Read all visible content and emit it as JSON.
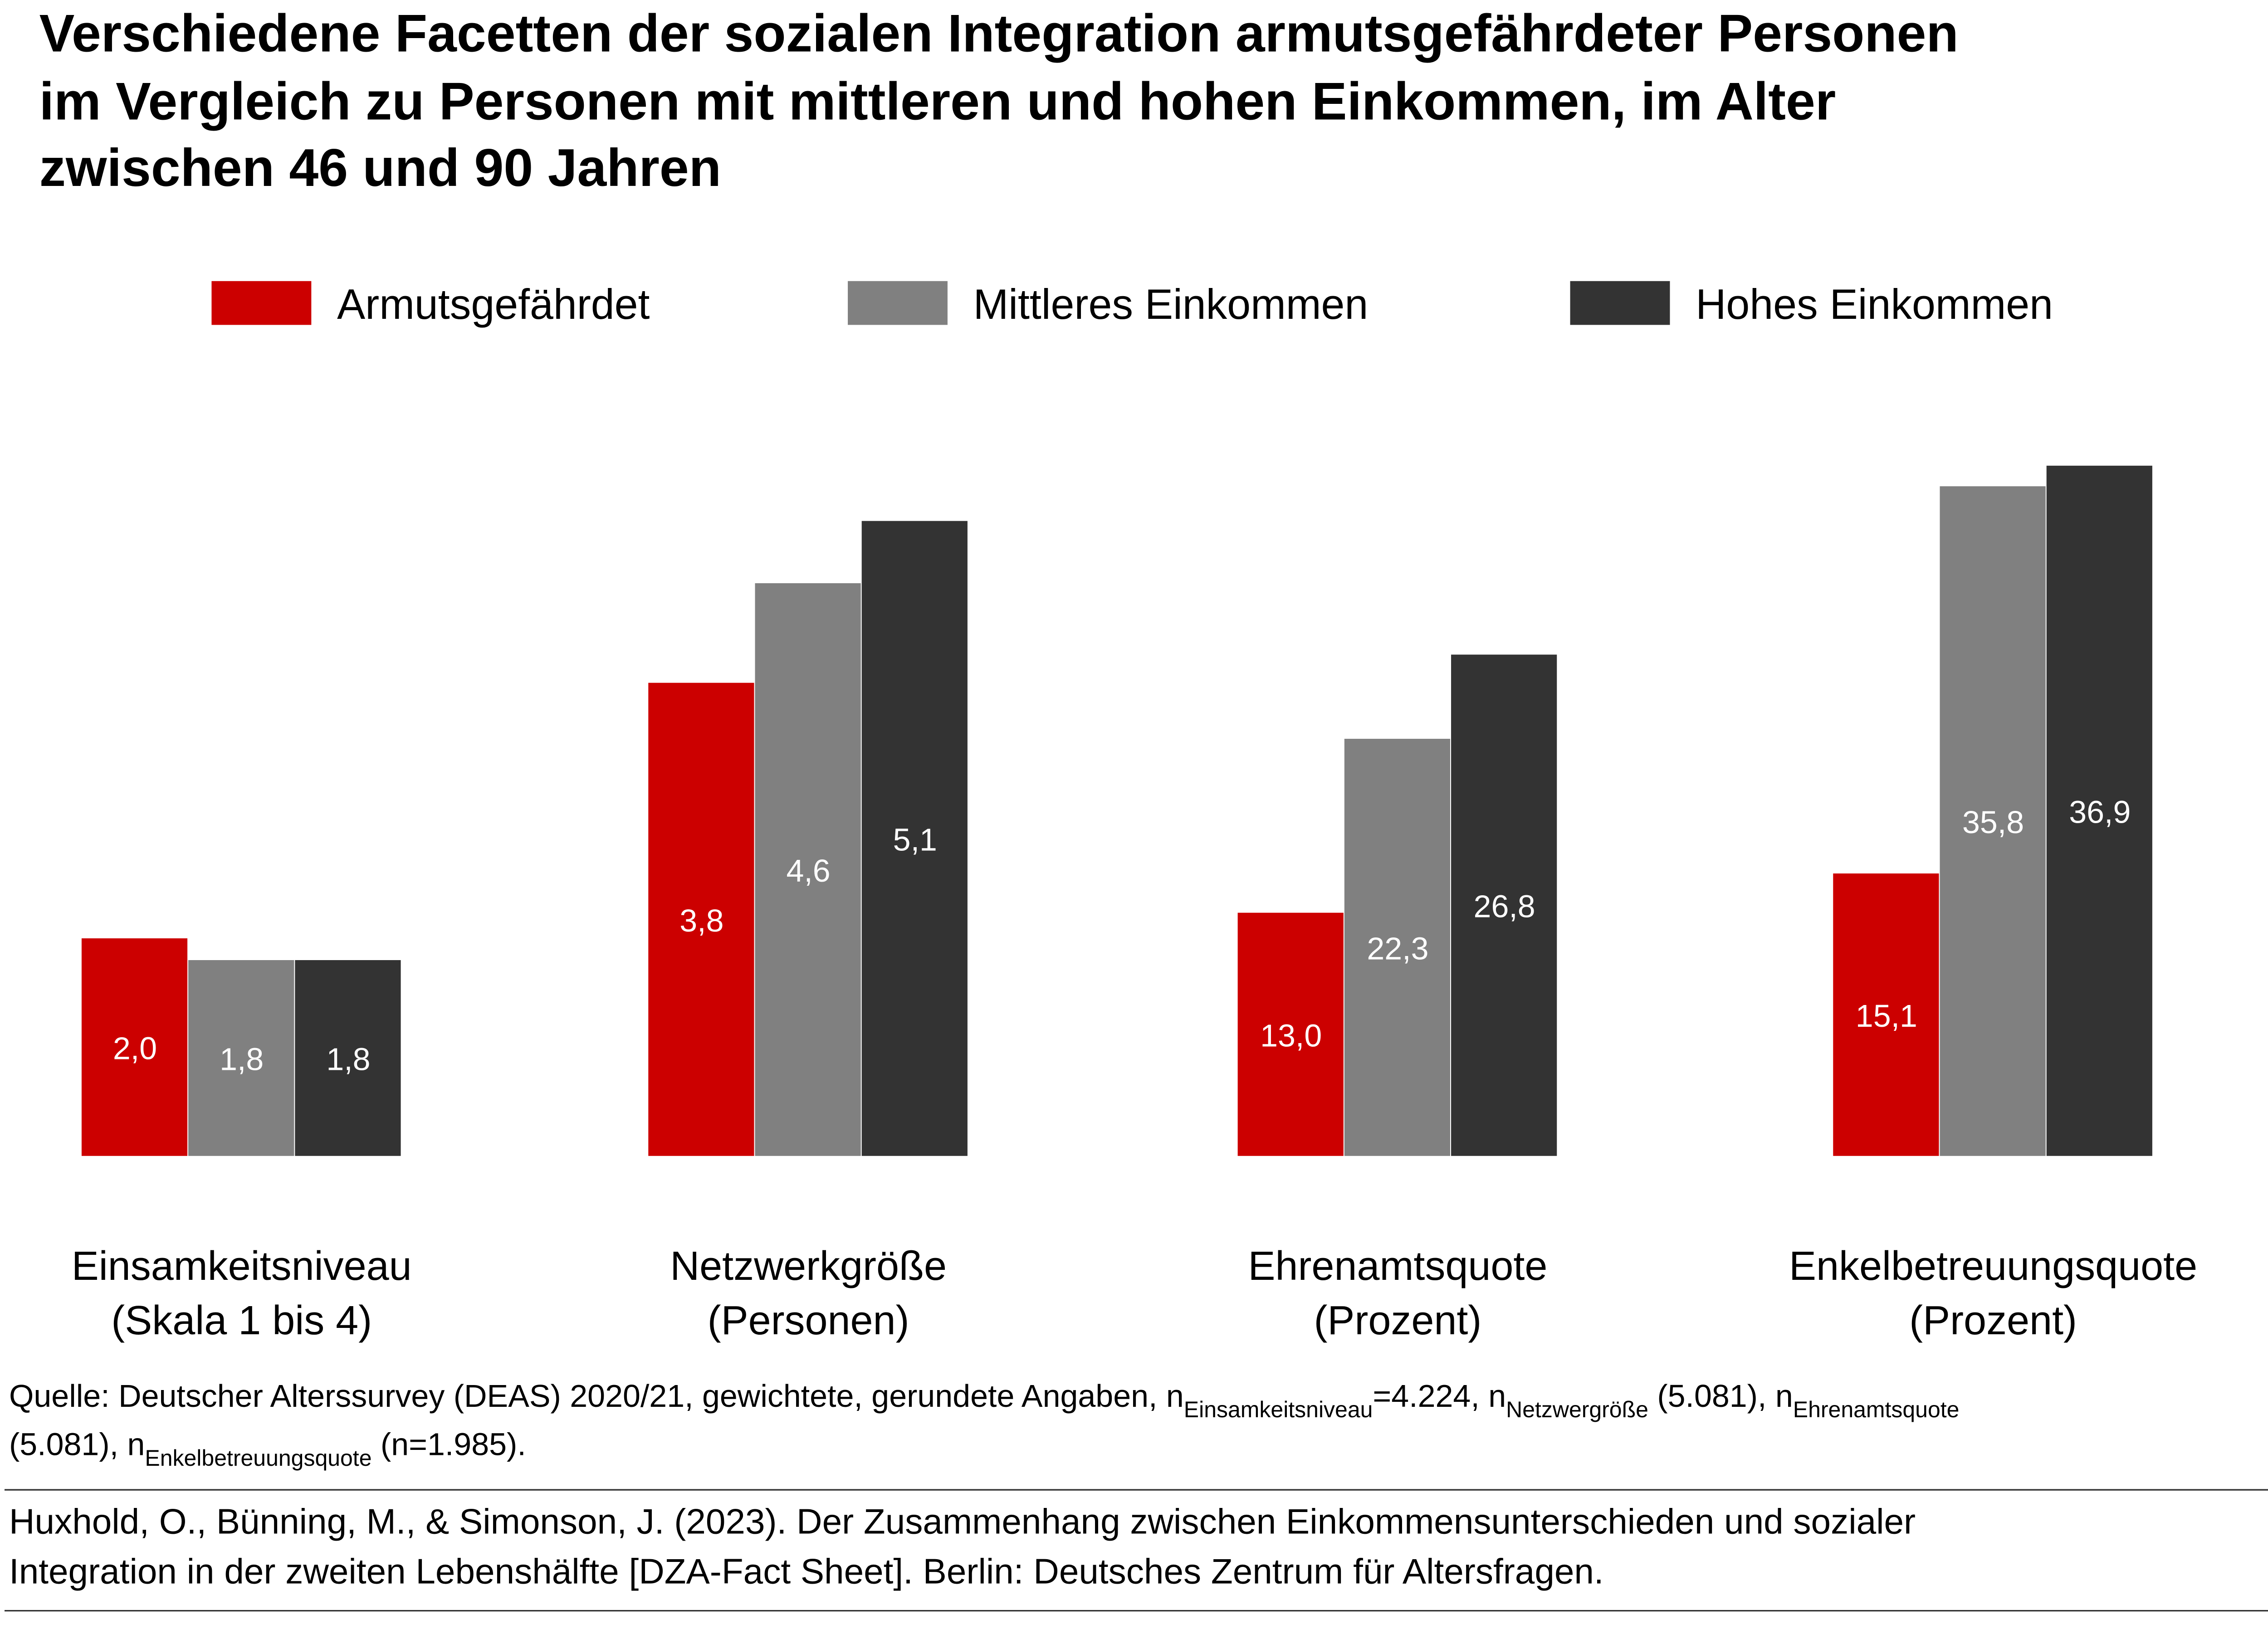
{
  "title_lines": [
    "Verschiedene Facetten der sozialen Integration armutsgefährdeter Personen",
    "im Vergleich zu Personen mit mittleren und hohen Einkommen, im Alter",
    "zwischen 46 und 90 Jahren"
  ],
  "chart_data": {
    "type": "bar",
    "title": "Verschiedene Facetten der sozialen Integration armutsgefährdeter Personen im Vergleich zu Personen mit mittleren und hohen Einkommen, im Alter zwischen 46 und 90 Jahren",
    "categories": [
      [
        "Einsamkeitsniveau",
        "(Skala 1 bis 4)"
      ],
      [
        "Netzwerkgröße",
        "(Personen)"
      ],
      [
        "Ehrenamtsquote",
        "(Prozent)"
      ],
      [
        "Enkelbetreuungsquote",
        "(Prozent)"
      ]
    ],
    "series": [
      {
        "name": "Armutsgefährdet",
        "color": "#cc0000",
        "values": [
          2.0,
          3.8,
          13.0,
          15.1
        ],
        "labels": [
          "2,0",
          "3,8",
          "13,0",
          "15,1"
        ]
      },
      {
        "name": "Mittleres Einkommen",
        "color": "#808080",
        "values": [
          1.8,
          4.6,
          22.3,
          35.8
        ],
        "labels": [
          "1,8",
          "4,6",
          "22,3",
          "35,8"
        ]
      },
      {
        "name": "Hohes Einkommen",
        "color": "#333333",
        "values": [
          1.8,
          5.1,
          26.8,
          36.9
        ],
        "labels": [
          "1,8",
          "5,1",
          "26,8",
          "36,9"
        ]
      }
    ],
    "legend_position": "top",
    "grid": false,
    "value_axis_shown": false
  },
  "footnote": {
    "parts": [
      {
        "t": "Quelle: Deutscher Alterssurvey (DEAS) 2020/21, gewichtete, gerundete Angaben, n"
      },
      {
        "sub": "Einsamkeitsniveau"
      },
      {
        "t": "=4.224, n"
      },
      {
        "sub": "Netzwergröße"
      },
      {
        "t": " (5.081), n"
      },
      {
        "sub": "Ehrenamtsquote"
      }
    ],
    "line2": [
      {
        "t": "(5.081), n"
      },
      {
        "sub": "Enkelbetreuungsquote"
      },
      {
        "t": " (n=1.985)."
      }
    ]
  },
  "citation_lines": [
    "Huxhold, O., Bünning, M., & Simonson, J. (2023). Der Zusammenhang zwischen Einkommensunterschieden und sozialer",
    "Integration in der zweiten Lebenshälfte [DZA-Fact Sheet]. Berlin: Deutsches Zentrum für Altersfragen."
  ]
}
